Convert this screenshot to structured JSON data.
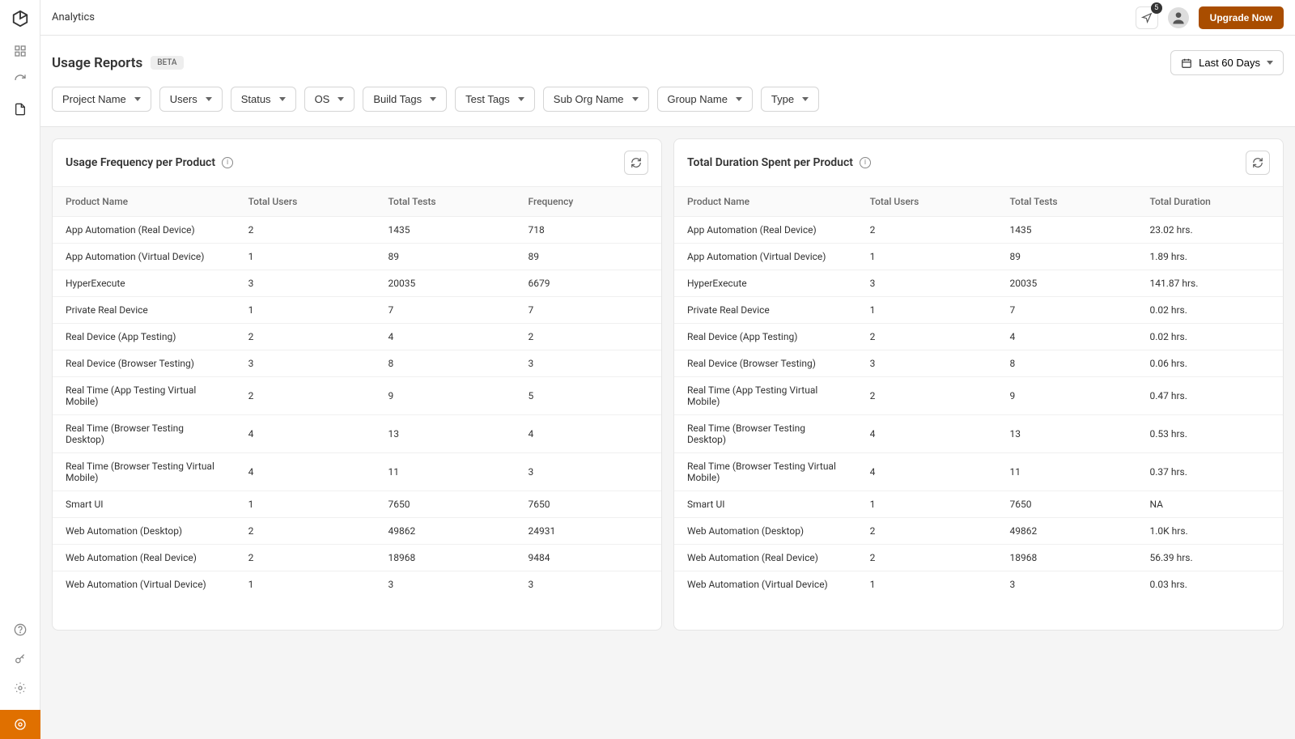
{
  "topbar": {
    "title": "Analytics",
    "notification_count": "5",
    "upgrade_label": "Upgrade Now"
  },
  "header": {
    "page_title": "Usage Reports",
    "beta_label": "BETA",
    "date_range": "Last 60 Days"
  },
  "filters": [
    "Project Name",
    "Users",
    "Status",
    "OS",
    "Build Tags",
    "Test Tags",
    "Sub Org Name",
    "Group Name",
    "Type"
  ],
  "card_left": {
    "title": "Usage Frequency per Product",
    "columns": [
      "Product Name",
      "Total Users",
      "Total Tests",
      "Frequency"
    ],
    "rows": [
      [
        "App Automation (Real Device)",
        "2",
        "1435",
        "718"
      ],
      [
        "App Automation (Virtual Device)",
        "1",
        "89",
        "89"
      ],
      [
        "HyperExecute",
        "3",
        "20035",
        "6679"
      ],
      [
        "Private Real Device",
        "1",
        "7",
        "7"
      ],
      [
        "Real Device (App Testing)",
        "2",
        "4",
        "2"
      ],
      [
        "Real Device (Browser Testing)",
        "3",
        "8",
        "3"
      ],
      [
        "Real Time (App Testing Virtual Mobile)",
        "2",
        "9",
        "5"
      ],
      [
        "Real Time (Browser Testing Desktop)",
        "4",
        "13",
        "4"
      ],
      [
        "Real Time (Browser Testing Virtual Mobile)",
        "4",
        "11",
        "3"
      ],
      [
        "Smart UI",
        "1",
        "7650",
        "7650"
      ],
      [
        "Web Automation (Desktop)",
        "2",
        "49862",
        "24931"
      ],
      [
        "Web Automation (Real Device)",
        "2",
        "18968",
        "9484"
      ],
      [
        "Web Automation (Virtual Device)",
        "1",
        "3",
        "3"
      ]
    ]
  },
  "card_right": {
    "title": "Total Duration Spent per Product",
    "columns": [
      "Product Name",
      "Total Users",
      "Total Tests",
      "Total Duration"
    ],
    "rows": [
      [
        "App Automation (Real Device)",
        "2",
        "1435",
        "23.02 hrs."
      ],
      [
        "App Automation (Virtual Device)",
        "1",
        "89",
        "1.89 hrs."
      ],
      [
        "HyperExecute",
        "3",
        "20035",
        "141.87 hrs."
      ],
      [
        "Private Real Device",
        "1",
        "7",
        "0.02 hrs."
      ],
      [
        "Real Device (App Testing)",
        "2",
        "4",
        "0.02 hrs."
      ],
      [
        "Real Device (Browser Testing)",
        "3",
        "8",
        "0.06 hrs."
      ],
      [
        "Real Time (App Testing Virtual Mobile)",
        "2",
        "9",
        "0.47 hrs."
      ],
      [
        "Real Time (Browser Testing Desktop)",
        "4",
        "13",
        "0.53 hrs."
      ],
      [
        "Real Time (Browser Testing Virtual Mobile)",
        "4",
        "11",
        "0.37 hrs."
      ],
      [
        "Smart UI",
        "1",
        "7650",
        "NA"
      ],
      [
        "Web Automation (Desktop)",
        "2",
        "49862",
        "1.0K hrs."
      ],
      [
        "Web Automation (Real Device)",
        "2",
        "18968",
        "56.39 hrs."
      ],
      [
        "Web Automation (Virtual Device)",
        "1",
        "3",
        "0.03 hrs."
      ]
    ]
  }
}
